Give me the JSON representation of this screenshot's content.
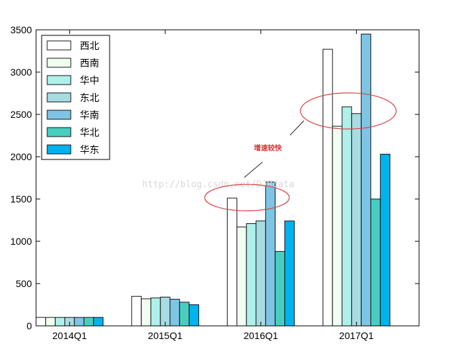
{
  "chart_data": {
    "type": "bar",
    "categories": [
      "2014Q1",
      "2015Q1",
      "2016Q1",
      "2017Q1"
    ],
    "series": [
      {
        "name": "西北",
        "color": "#ffffff",
        "values": [
          100,
          350,
          1510,
          3270
        ]
      },
      {
        "name": "西南",
        "color": "#f0fff0",
        "values": [
          100,
          320,
          1170,
          2360
        ]
      },
      {
        "name": "华中",
        "color": "#aff0ea",
        "values": [
          100,
          330,
          1210,
          2590
        ]
      },
      {
        "name": "东北",
        "color": "#a8dce3",
        "values": [
          100,
          340,
          1240,
          2510
        ]
      },
      {
        "name": "华南",
        "color": "#7ec4e4",
        "values": [
          100,
          315,
          1700,
          3450
        ]
      },
      {
        "name": "华北",
        "color": "#48cebf",
        "values": [
          100,
          280,
          880,
          1500
        ]
      },
      {
        "name": "华东",
        "color": "#00b2ee",
        "values": [
          100,
          250,
          1240,
          2030
        ]
      }
    ],
    "ylim": [
      0,
      3500
    ],
    "yticks": [
      0,
      500,
      1000,
      1500,
      2000,
      2500,
      3000,
      3500
    ],
    "legend_position": "top-left",
    "grid": false,
    "annotation": {
      "text": "增速较快",
      "color": "#d93030"
    },
    "watermark": "http://blog.csdn.net/DJRdata"
  }
}
